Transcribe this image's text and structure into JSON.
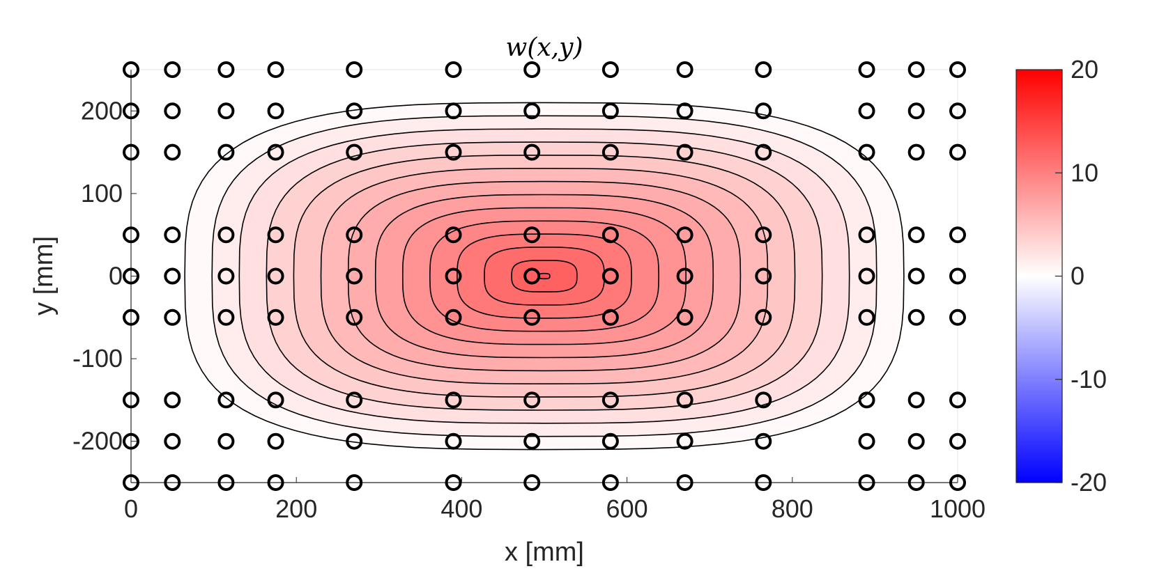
{
  "chart_data": {
    "type": "contour",
    "title": "w(x,y)",
    "xlabel": "x [mm]",
    "ylabel": "y [mm]",
    "xlim": [
      0,
      1000
    ],
    "ylim": [
      -250,
      250
    ],
    "xticks": [
      0,
      200,
      400,
      600,
      800,
      1000
    ],
    "yticks": [
      -200,
      -100,
      0,
      100,
      200
    ],
    "colorbar": {
      "range": [
        -20,
        20
      ],
      "ticks": [
        20,
        10,
        0,
        -10,
        -20
      ],
      "colormap": "blue-white-red",
      "colors": {
        "low": "#0000ff",
        "mid": "#ffffff",
        "high": "#ff0000"
      }
    },
    "grid": false,
    "field": {
      "description_of_values": "approximate deflection w, peak about 13 near x=500, y=0, zero at boundary",
      "peak": 13.2,
      "center": [
        500,
        0
      ],
      "zero_x_bounds": [
        67,
        937
      ],
      "zero_y_bounds": [
        -210,
        210
      ],
      "contour_step": 1
    },
    "marker_x": [
      0,
      50,
      115,
      175,
      270,
      390,
      485,
      580,
      670,
      765,
      890,
      950,
      1000
    ],
    "marker_y": [
      250,
      200,
      150,
      50,
      0,
      -50,
      -150,
      -200,
      -250
    ],
    "marker_style": "open-circle"
  }
}
